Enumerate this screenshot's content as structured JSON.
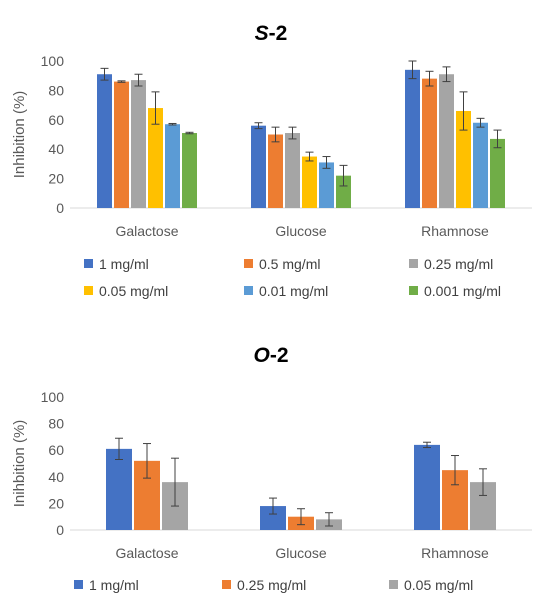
{
  "chart_data": [
    {
      "type": "bar",
      "title_prefix": "S",
      "title_suffix": "-2",
      "ylabel": "Inhibition (%)",
      "ylim": [
        0,
        100
      ],
      "yticks": [
        0,
        20,
        40,
        60,
        80,
        100
      ],
      "categories": [
        "Galactose",
        "Glucose",
        "Rhamnose"
      ],
      "error_bars": true,
      "legend_position": "bottom",
      "series": [
        {
          "name": "1 mg/ml",
          "color": "#4472C4",
          "values": [
            91,
            56,
            94
          ],
          "errors": [
            4,
            2,
            6
          ]
        },
        {
          "name": "0.5 mg/ml",
          "color": "#ED7D31",
          "values": [
            86,
            50,
            88
          ],
          "errors": [
            0.5,
            5,
            5
          ]
        },
        {
          "name": "0.25 mg/ml",
          "color": "#A5A5A5",
          "values": [
            87,
            51,
            91
          ],
          "errors": [
            4,
            4,
            5
          ]
        },
        {
          "name": "0.05 mg/ml",
          "color": "#FFC000",
          "values": [
            68,
            35,
            66
          ],
          "errors": [
            11,
            3,
            13
          ]
        },
        {
          "name": "0.01 mg/ml",
          "color": "#5B9BD5",
          "values": [
            57,
            31,
            58
          ],
          "errors": [
            0.5,
            4,
            3
          ]
        },
        {
          "name": "0.001 mg/ml",
          "color": "#70AD47",
          "values": [
            51,
            22,
            47
          ],
          "errors": [
            0.5,
            7,
            6
          ]
        }
      ]
    },
    {
      "type": "bar",
      "title_prefix": "O",
      "title_suffix": "-2",
      "ylabel": "Inihbition (%)",
      "ylim": [
        0,
        100
      ],
      "yticks": [
        0,
        20,
        40,
        60,
        80,
        100
      ],
      "categories": [
        "Galactose",
        "Glucose",
        "Rhamnose"
      ],
      "error_bars": true,
      "legend_position": "bottom",
      "series": [
        {
          "name": "1 mg/ml",
          "color": "#4472C4",
          "values": [
            61,
            18,
            64
          ],
          "errors": [
            8,
            6,
            2
          ]
        },
        {
          "name": "0.25 mg/ml",
          "color": "#ED7D31",
          "values": [
            52,
            10,
            45
          ],
          "errors": [
            13,
            6,
            11
          ]
        },
        {
          "name": "0.05 mg/ml",
          "color": "#A5A5A5",
          "values": [
            36,
            8,
            36
          ],
          "errors": [
            18,
            5,
            10
          ]
        }
      ]
    }
  ]
}
